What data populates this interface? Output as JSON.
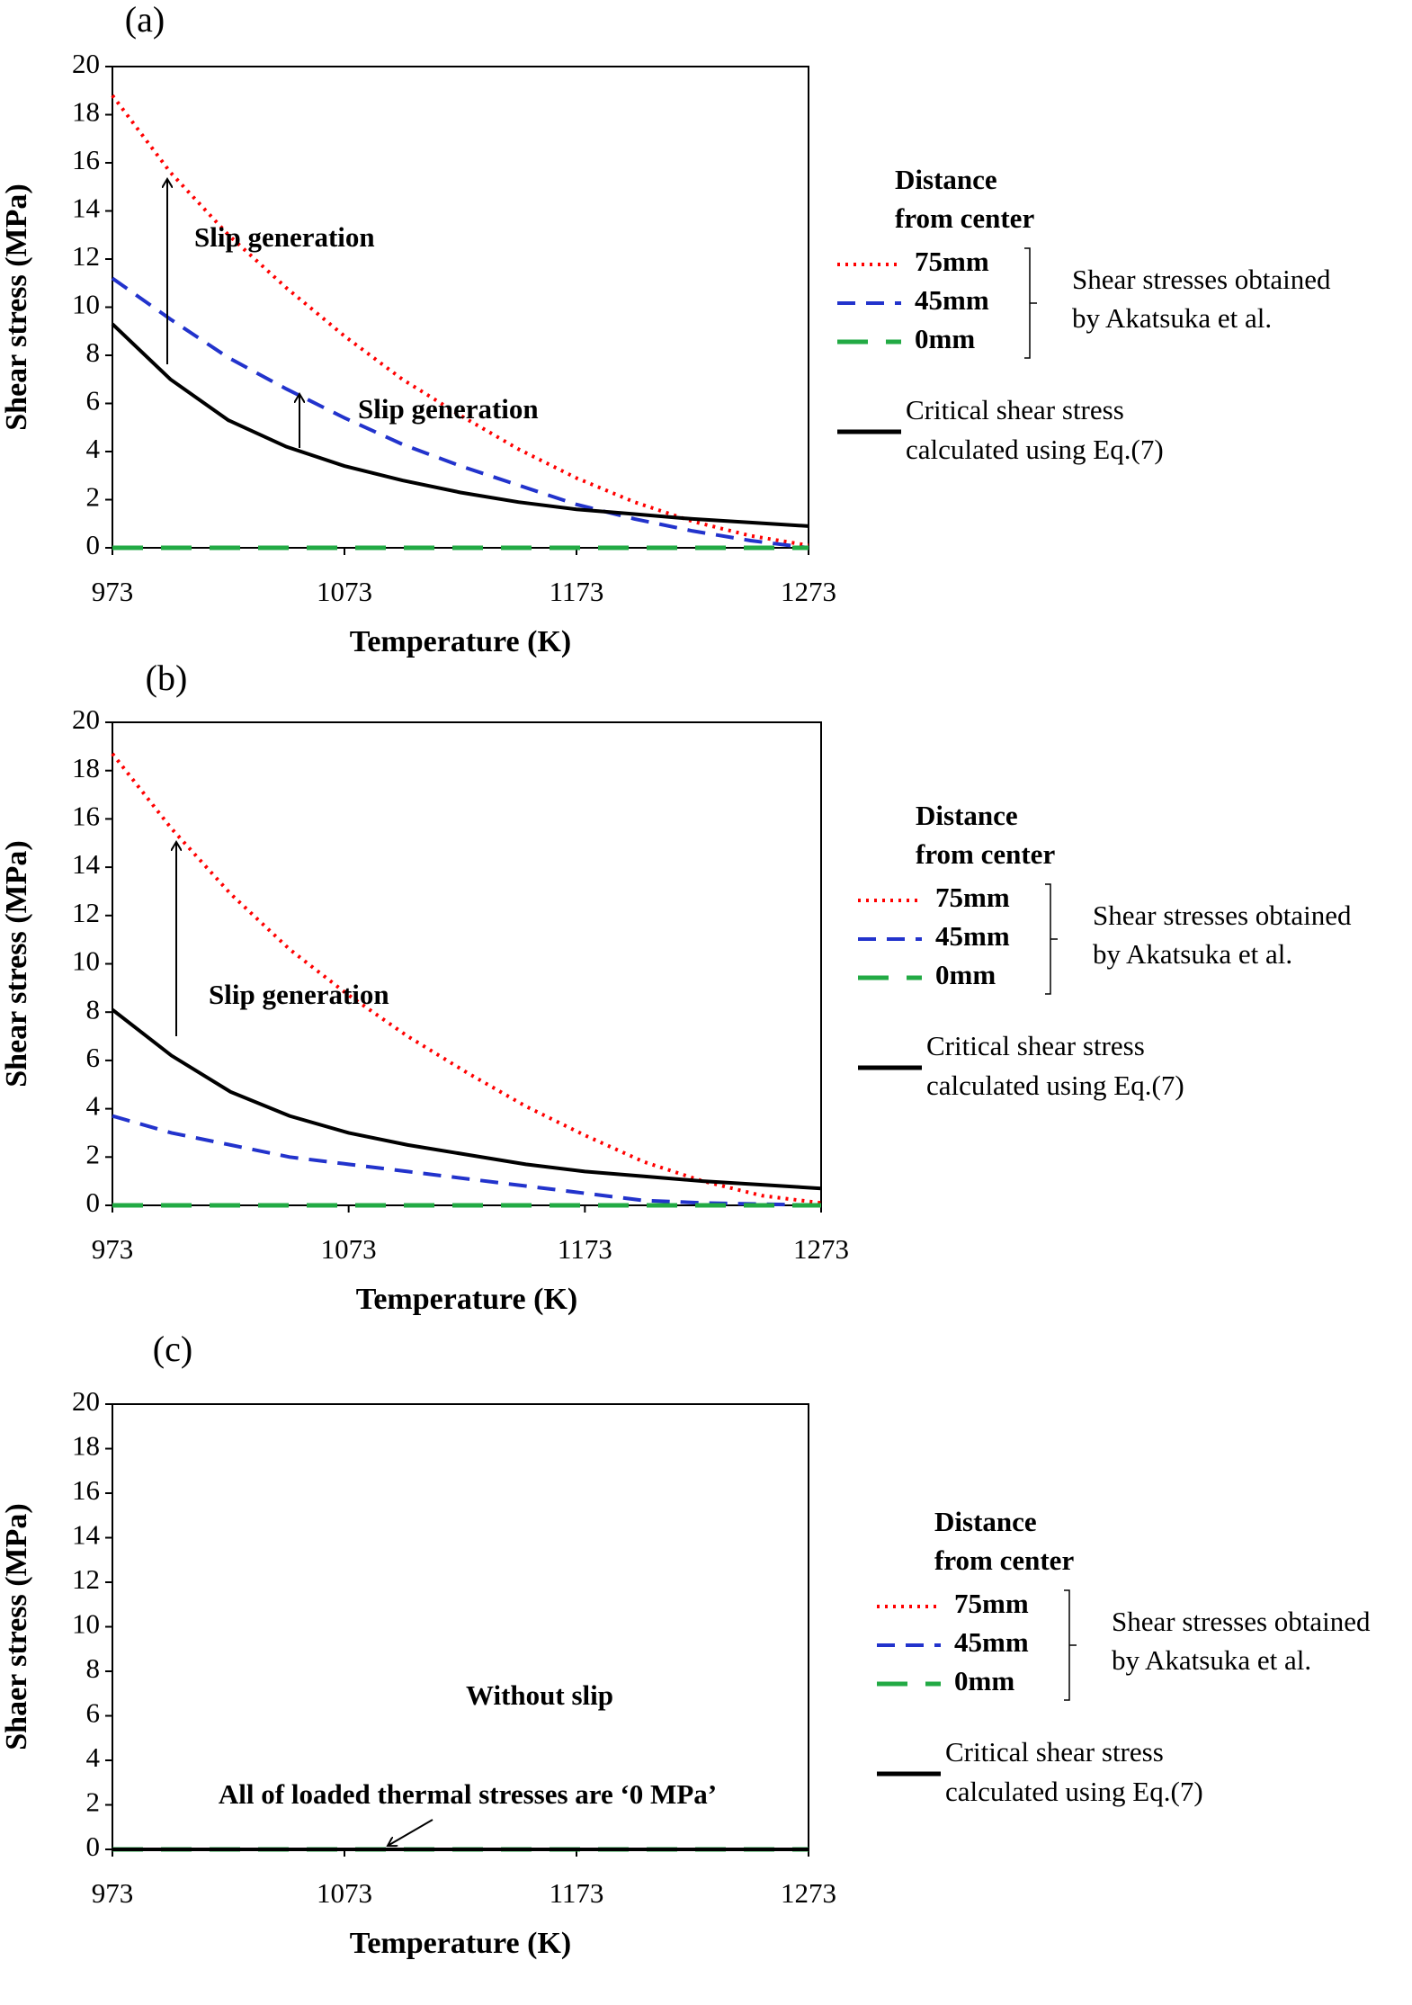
{
  "chart_data": [
    {
      "type": "line",
      "panel_label": "(a)",
      "xlabel": "Temperature (K)",
      "ylabel": "Shear stress (MPa)",
      "xlim": [
        973,
        1273
      ],
      "ylim": [
        0,
        20
      ],
      "xticks": [
        973,
        1073,
        1173,
        1273
      ],
      "yticks": [
        0,
        2,
        4,
        6,
        8,
        10,
        12,
        14,
        16,
        18,
        20
      ],
      "x": [
        973,
        998,
        1023,
        1048,
        1073,
        1098,
        1123,
        1148,
        1173,
        1198,
        1223,
        1248,
        1273
      ],
      "legend_title": [
        "Distance",
        "from center"
      ],
      "group_note": [
        "Shear stresses obtained",
        "by Akatsuka et al."
      ],
      "annotations": [
        "Slip generation",
        "Slip generation"
      ],
      "series": [
        {
          "name": "75mm",
          "color": "#ff0000",
          "dash": "dotted",
          "values": [
            18.8,
            15.6,
            13.0,
            10.8,
            8.8,
            7.0,
            5.5,
            4.1,
            2.9,
            1.9,
            1.1,
            0.5,
            0.1
          ]
        },
        {
          "name": "45mm",
          "color": "#2233cc",
          "dash": "dashed",
          "values": [
            11.2,
            9.5,
            7.9,
            6.6,
            5.4,
            4.3,
            3.4,
            2.6,
            1.8,
            1.2,
            0.7,
            0.3,
            0.0
          ]
        },
        {
          "name": "0mm",
          "color": "#22aa44",
          "dash": "longdash",
          "values": [
            0,
            0,
            0,
            0,
            0,
            0,
            0,
            0,
            0,
            0,
            0,
            0,
            0
          ]
        },
        {
          "name": [
            "Critical shear stress",
            "calculated  using  Eq.(7)"
          ],
          "color": "#000000",
          "dash": "solid",
          "values": [
            9.3,
            7.0,
            5.3,
            4.2,
            3.4,
            2.8,
            2.3,
            1.9,
            1.6,
            1.4,
            1.2,
            1.05,
            0.9
          ]
        }
      ]
    },
    {
      "type": "line",
      "panel_label": "(b)",
      "xlabel": "Temperature (K)",
      "ylabel": "Shear stress (MPa)",
      "xlim": [
        973,
        1273
      ],
      "ylim": [
        0,
        20
      ],
      "xticks": [
        973,
        1073,
        1173,
        1273
      ],
      "yticks": [
        0,
        2,
        4,
        6,
        8,
        10,
        12,
        14,
        16,
        18,
        20
      ],
      "x": [
        973,
        998,
        1023,
        1048,
        1073,
        1098,
        1123,
        1148,
        1173,
        1198,
        1223,
        1248,
        1273
      ],
      "legend_title": [
        "Distance",
        "from center"
      ],
      "group_note": [
        "Shear stresses obtained",
        "by Akatsuka et al."
      ],
      "annotations": [
        "Slip generation"
      ],
      "series": [
        {
          "name": "75mm",
          "color": "#ff0000",
          "dash": "dotted",
          "values": [
            18.7,
            15.6,
            12.9,
            10.6,
            8.7,
            7.0,
            5.5,
            4.1,
            2.9,
            1.8,
            1.0,
            0.4,
            0.1
          ]
        },
        {
          "name": "45mm",
          "color": "#2233cc",
          "dash": "dashed",
          "values": [
            3.7,
            3.0,
            2.5,
            2.0,
            1.7,
            1.4,
            1.1,
            0.8,
            0.5,
            0.2,
            0.1,
            0.05,
            0.0
          ]
        },
        {
          "name": "0mm",
          "color": "#22aa44",
          "dash": "longdash",
          "values": [
            0,
            0,
            0,
            0,
            0,
            0,
            0,
            0,
            0,
            0,
            0,
            0,
            0
          ]
        },
        {
          "name": [
            "Critical shear stress",
            "calculated  using  Eq.(7)"
          ],
          "color": "#000000",
          "dash": "solid",
          "values": [
            8.1,
            6.2,
            4.7,
            3.7,
            3.0,
            2.5,
            2.1,
            1.7,
            1.4,
            1.2,
            1.0,
            0.85,
            0.7
          ]
        }
      ]
    },
    {
      "type": "line",
      "panel_label": "(c)",
      "xlabel": "Temperature (K)",
      "ylabel": "Shaer stress (MPa)",
      "xlim": [
        973,
        1273
      ],
      "ylim": [
        0,
        20
      ],
      "xticks": [
        973,
        1073,
        1173,
        1273
      ],
      "yticks": [
        0,
        2,
        4,
        6,
        8,
        10,
        12,
        14,
        16,
        18,
        20
      ],
      "x": [
        973,
        998,
        1023,
        1048,
        1073,
        1098,
        1123,
        1148,
        1173,
        1198,
        1223,
        1248,
        1273
      ],
      "legend_title": [
        "Distance",
        "from center"
      ],
      "group_note": [
        "Shear stresses obtained",
        "by Akatsuka et al."
      ],
      "annotations": [
        "Without slip",
        "All of  loaded thermal stresses are ‘0 MPa’"
      ],
      "series": [
        {
          "name": "75mm",
          "color": "#ff0000",
          "dash": "dotted",
          "values": [
            0,
            0,
            0,
            0,
            0,
            0,
            0,
            0,
            0,
            0,
            0,
            0,
            0
          ]
        },
        {
          "name": "45mm",
          "color": "#2233cc",
          "dash": "dashed",
          "values": [
            0,
            0,
            0,
            0,
            0,
            0,
            0,
            0,
            0,
            0,
            0,
            0,
            0
          ]
        },
        {
          "name": "0mm",
          "color": "#22aa44",
          "dash": "longdash",
          "values": [
            0,
            0,
            0,
            0,
            0,
            0,
            0,
            0,
            0,
            0,
            0,
            0,
            0
          ]
        },
        {
          "name": [
            "Critical shear stress",
            "calculated  using  Eq.(7)"
          ],
          "color": "#000000",
          "dash": "solid",
          "values": [
            0,
            0,
            0,
            0,
            0,
            0,
            0,
            0,
            0,
            0,
            0,
            0,
            0
          ]
        }
      ]
    }
  ]
}
